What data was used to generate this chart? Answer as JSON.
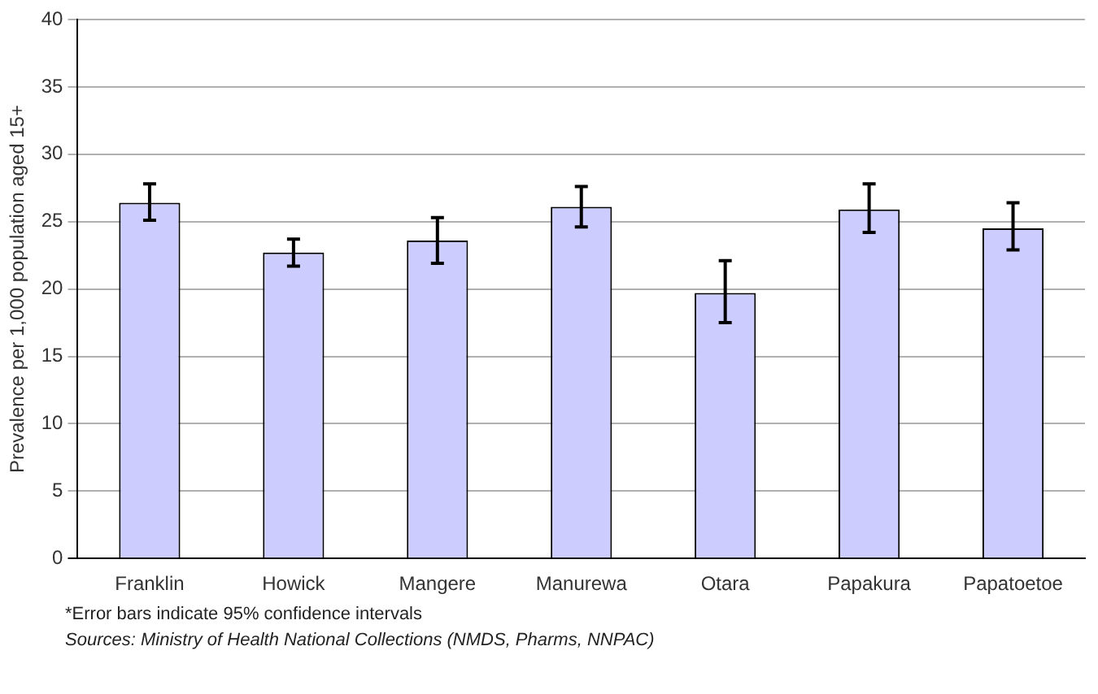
{
  "chart_data": {
    "type": "bar",
    "ylabel": "Prevalence per 1,000 population aged 15+",
    "categories": [
      "Franklin",
      "Howick",
      "Mangere",
      "Manurewa",
      "Otara",
      "Papakura",
      "Papatoetoe"
    ],
    "values": [
      26.4,
      22.7,
      23.6,
      26.1,
      19.7,
      25.9,
      24.5
    ],
    "errors": [
      [
        25.1,
        27.8
      ],
      [
        21.7,
        23.7
      ],
      [
        21.9,
        25.3
      ],
      [
        24.6,
        27.6
      ],
      [
        17.5,
        22.1
      ],
      [
        24.2,
        27.8
      ],
      [
        22.9,
        26.4
      ]
    ],
    "color": "#ccccff",
    "ylim": [
      0,
      40
    ],
    "yticks": [
      0,
      5,
      10,
      15,
      20,
      25,
      30,
      35,
      40
    ],
    "grid": "y",
    "annotations": [
      "*Error bars indicate 95% confidence intervals",
      "Sources: Ministry of Health National Collections (NMDS, Pharms, NNPAC)"
    ]
  }
}
